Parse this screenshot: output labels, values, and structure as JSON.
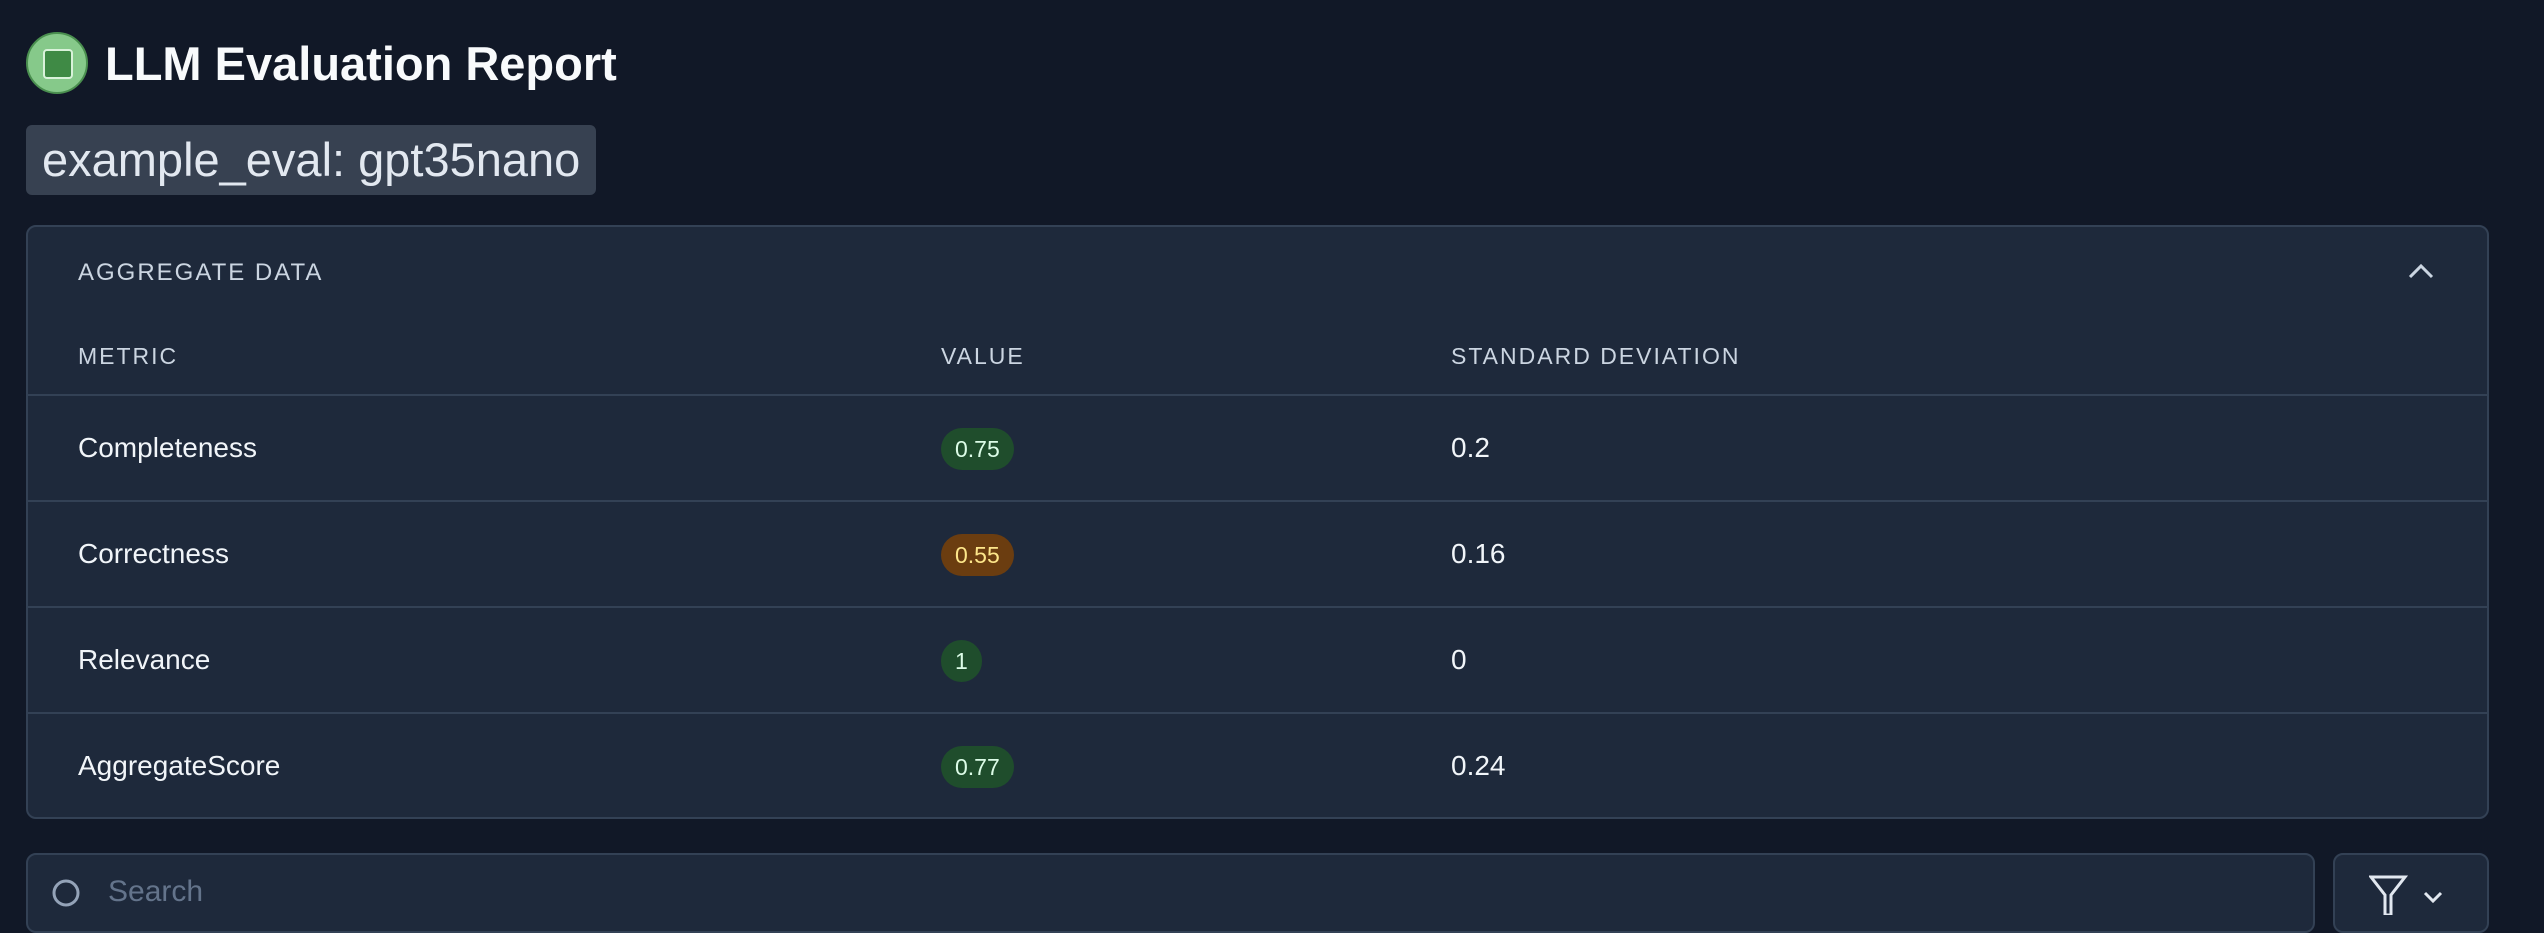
{
  "header": {
    "title": "LLM Evaluation Report",
    "subtitle": "example_eval: gpt35nano"
  },
  "aggregate": {
    "title": "AGGREGATE DATA",
    "columns": [
      "METRIC",
      "VALUE",
      "STANDARD DEVIATION"
    ],
    "rows": [
      {
        "metric": "Completeness",
        "value": 0.75,
        "std_dev": 0.2,
        "color": "#22c55e"
      },
      {
        "metric": "Correctness",
        "value": 0.55,
        "std_dev": 0.16,
        "color": "#f59e0b"
      },
      {
        "metric": "Relevance",
        "value": 1,
        "std_dev": 0,
        "color": "#22c55e"
      },
      {
        "metric": "AggregateScore",
        "value": 0.77,
        "std_dev": 0.24,
        "color": "#22c55e"
      }
    ]
  },
  "search": {
    "placeholder": "Search"
  }
}
